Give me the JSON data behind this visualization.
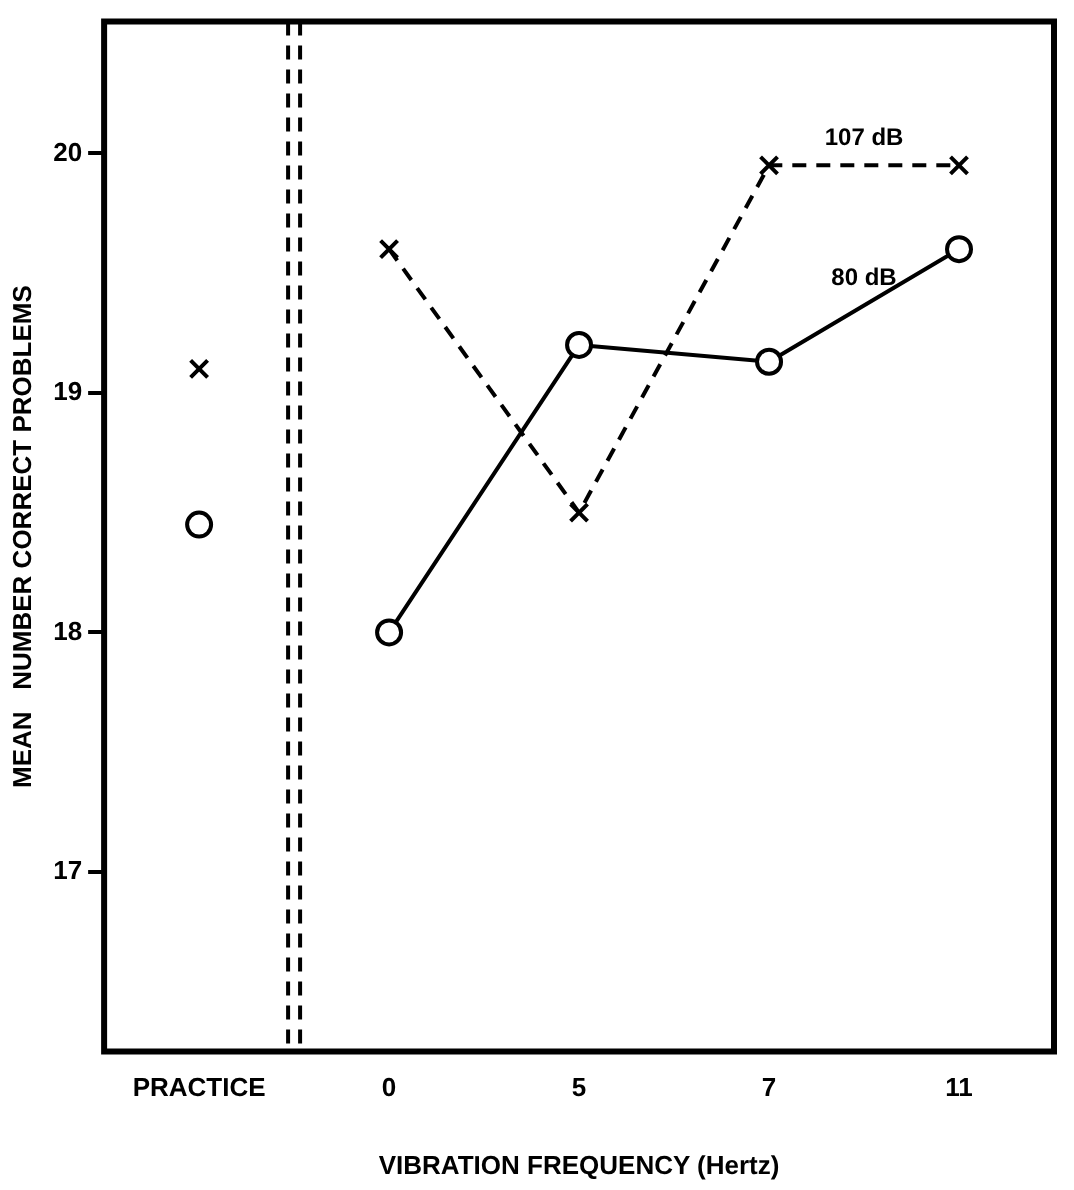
{
  "chart_data": {
    "type": "line",
    "xlabel": "VIBRATION FREQUENCY (Hertz)",
    "ylabel": "MEAN   NUMBER CORRECT PROBLEMS",
    "categories": [
      "PRACTICE",
      "0",
      "5",
      "7",
      "11"
    ],
    "ylim": [
      16.25,
      20.55
    ],
    "yticks": [
      17,
      18,
      19,
      20
    ],
    "grid": false,
    "legend": false,
    "series": [
      {
        "name": "107 dB",
        "color": "#000000",
        "marker": "cross",
        "line_style": "dashed",
        "values": [
          null,
          19.6,
          18.5,
          19.95,
          19.95
        ]
      },
      {
        "name": "80 dB",
        "color": "#000000",
        "marker": "circle",
        "line_style": "solid",
        "values": [
          null,
          18.0,
          19.2,
          19.13,
          19.6
        ]
      },
      {
        "type": "scatter",
        "color": "#000000",
        "marker": "cross",
        "values": [
          19.1,
          null,
          null,
          null,
          null
        ]
      },
      {
        "type": "scatter",
        "color": "#000000",
        "marker": "circle",
        "values": [
          18.45,
          null,
          null,
          null,
          null
        ]
      }
    ]
  }
}
